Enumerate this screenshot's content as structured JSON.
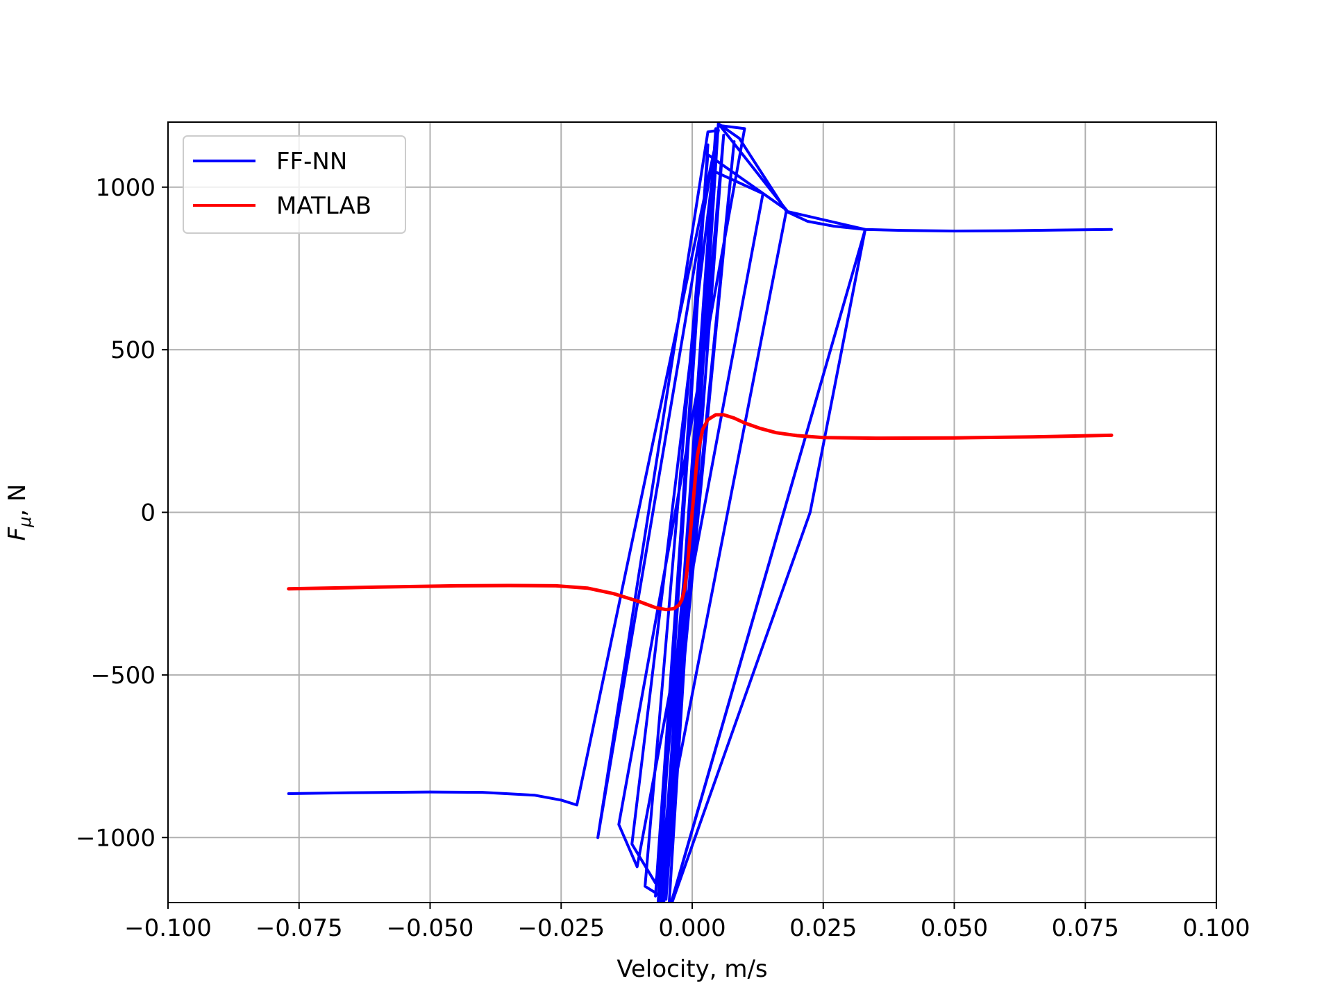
{
  "chart_data": {
    "type": "line",
    "xlabel": "Velocity, m/s",
    "ylabel_main": "F",
    "ylabel_sub": "μ",
    "ylabel_tail": ", N",
    "xlim": [
      -0.1,
      0.1
    ],
    "ylim": [
      -1200,
      1200
    ],
    "xticks": [
      -0.1,
      -0.075,
      -0.05,
      -0.025,
      0.0,
      0.025,
      0.05,
      0.075,
      0.1
    ],
    "xtick_labels": [
      "−0.100",
      "−0.075",
      "−0.050",
      "−0.025",
      "0.000",
      "0.025",
      "0.050",
      "0.075",
      "0.100"
    ],
    "yticks": [
      -1000,
      -500,
      0,
      500,
      1000
    ],
    "ytick_labels": [
      "−1000",
      "−500",
      "0",
      "500",
      "1000"
    ],
    "grid": true,
    "legend_position": "top-left",
    "series": [
      {
        "name": "FF-NN",
        "color": "#0000ff",
        "x": [
          -0.077,
          -0.065,
          -0.05,
          -0.04,
          -0.03,
          -0.025,
          -0.022,
          0.005,
          0.003,
          -0.018,
          0.005,
          0.01,
          -0.014,
          -0.0105,
          0.0135,
          0.004,
          -0.0115,
          -0.007,
          0.018,
          0.003,
          -0.009,
          -0.005,
          0.006,
          -0.007,
          0.003,
          -0.0065,
          0.008,
          -0.006,
          0.0045,
          -0.0055,
          0.005,
          -0.0045,
          0.033,
          0.0182,
          0.005,
          0.009,
          0.018,
          0.022,
          0.027,
          0.033,
          -0.004,
          -0.0045,
          0.0225,
          0.033,
          0.04,
          0.05,
          0.06,
          0.07,
          0.08
        ],
        "y": [
          -865,
          -862,
          -860,
          -861,
          -870,
          -885,
          -900,
          1175,
          1170,
          -1000,
          1190,
          1180,
          -960,
          -1090,
          980,
          1050,
          -1020,
          -1140,
          930,
          1100,
          -1150,
          -1190,
          1160,
          -1180,
          1130,
          -1200,
          1140,
          -1210,
          1180,
          -1220,
          1200,
          -1230,
          870,
          925,
          1195,
          1150,
          925,
          895,
          880,
          870,
          -1200,
          -1230,
          0,
          870,
          867,
          865,
          866,
          868,
          870
        ]
      },
      {
        "name": "MATLAB",
        "color": "#ff0000",
        "x": [
          -0.077,
          -0.06,
          -0.045,
          -0.035,
          -0.026,
          -0.02,
          -0.015,
          -0.01,
          -0.007,
          -0.005,
          -0.0035,
          -0.0025,
          -0.002,
          -0.0015,
          -0.001,
          0.0,
          0.001,
          0.002,
          0.003,
          0.0045,
          0.006,
          0.008,
          0.01,
          0.013,
          0.016,
          0.02,
          0.025,
          0.035,
          0.05,
          0.065,
          0.08
        ],
        "y": [
          -235,
          -230,
          -226,
          -225,
          -226,
          -233,
          -250,
          -275,
          -293,
          -299,
          -296,
          -285,
          -270,
          -240,
          -180,
          0,
          175,
          255,
          285,
          300,
          300,
          290,
          275,
          258,
          245,
          236,
          230,
          228,
          229,
          232,
          237
        ]
      }
    ]
  }
}
